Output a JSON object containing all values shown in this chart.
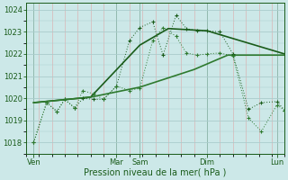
{
  "bg_color": "#cce8e8",
  "grid_major_color": "#aacccc",
  "grid_minor_color_x": "#dda8a8",
  "grid_minor_color_y": "#aacccc",
  "line_color1": "#1a5c1a",
  "line_color2": "#2e7a2e",
  "xlabel": "Pression niveau de la mer( hPa )",
  "ylim": [
    1017.5,
    1024.3
  ],
  "yticks": [
    1018,
    1019,
    1020,
    1021,
    1022,
    1023,
    1024
  ],
  "xlim": [
    0,
    10.0
  ],
  "xtick_positions": [
    0.3,
    3.5,
    4.4,
    7.0,
    9.7
  ],
  "xtick_labels": [
    "Ven",
    "Mar",
    "Sam",
    "Dim",
    "Lun"
  ],
  "major_vlines": [
    0.3,
    3.5,
    4.4,
    7.0,
    9.7
  ],
  "series1_x": [
    0.3,
    0.8,
    1.2,
    1.5,
    1.9,
    2.2,
    2.6,
    3.0,
    3.5,
    4.0,
    4.4,
    4.9,
    5.3,
    5.8,
    6.2,
    6.6,
    7.0,
    7.5,
    8.0,
    8.6,
    9.1,
    9.7,
    10.0
  ],
  "series1_y": [
    1018.0,
    1019.8,
    1019.4,
    1019.95,
    1019.55,
    1020.35,
    1020.2,
    1019.95,
    1020.55,
    1020.35,
    1020.45,
    1022.6,
    1023.2,
    1022.8,
    1022.05,
    1021.95,
    1022.0,
    1022.05,
    1021.9,
    1019.1,
    1018.5,
    1019.7,
    1019.45
  ],
  "series2_x": [
    0.3,
    0.8,
    1.2,
    1.5,
    1.9,
    2.2,
    2.6,
    3.0,
    3.5,
    4.0,
    4.4,
    4.9,
    5.3,
    5.8,
    6.2,
    6.6,
    7.0,
    7.5,
    8.0,
    8.6,
    9.1,
    9.7,
    10.0
  ],
  "series2_y": [
    1018.0,
    1019.8,
    1019.4,
    1019.95,
    1019.55,
    1020.0,
    1019.95,
    1019.95,
    1020.55,
    1022.6,
    1023.2,
    1023.45,
    1021.95,
    1023.75,
    1023.15,
    1023.05,
    1023.05,
    1023.0,
    1022.0,
    1019.5,
    1019.8,
    1019.85,
    1019.45
  ],
  "series3_x": [
    0.3,
    2.5,
    4.4,
    6.5,
    7.8,
    10.0
  ],
  "series3_y": [
    1019.8,
    1020.05,
    1020.5,
    1021.3,
    1021.95,
    1021.95
  ],
  "series4_x": [
    0.3,
    2.5,
    4.4,
    5.5,
    7.0,
    10.0
  ],
  "series4_y": [
    1019.8,
    1020.05,
    1022.4,
    1023.15,
    1023.05,
    1022.0
  ]
}
